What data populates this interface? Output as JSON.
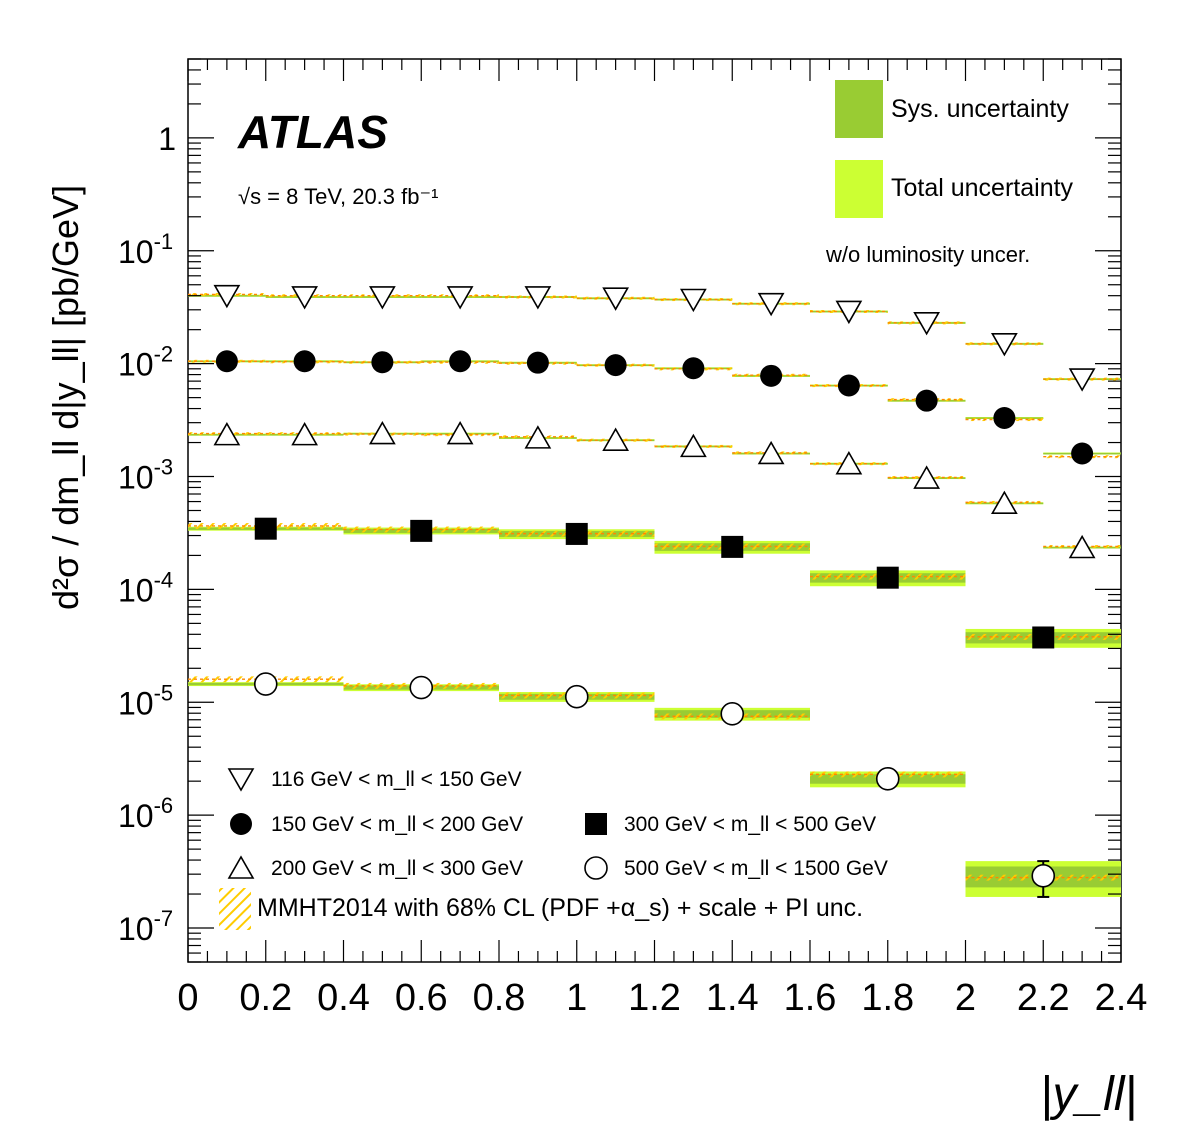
{
  "chart_data": {
    "type": "scatter",
    "experiment": "ATLAS",
    "energy_label": "√s = 8 TeV, 20.3 fb⁻¹",
    "ylabel": "d²σ / dm_ll d|y_ll| [pb/GeV]",
    "xlabel": "|y_ll|",
    "xlim": [
      0,
      2.4
    ],
    "ylim": [
      5e-08,
      5
    ],
    "y_scale": "log",
    "x_ticks": [
      "0",
      "0.2",
      "0.4",
      "0.6",
      "0.8",
      "1",
      "1.2",
      "1.4",
      "1.6",
      "1.8",
      "2",
      "2.2",
      "2.4"
    ],
    "y_ticks": [
      {
        "exp": "-7",
        "value": 1e-07
      },
      {
        "exp": "-6",
        "value": 1e-06
      },
      {
        "exp": "-5",
        "value": 1e-05
      },
      {
        "exp": "-4",
        "value": 0.0001
      },
      {
        "exp": "-3",
        "value": 0.001
      },
      {
        "exp": "-2",
        "value": 0.01
      },
      {
        "exp": "-1",
        "value": 0.1
      },
      {
        "exp": "",
        "value": 1
      }
    ],
    "band_legend": {
      "sys": "Sys. uncertainty",
      "total": "Total uncertainty",
      "note": "w/o luminosity uncer."
    },
    "theory_legend": "MMHT2014 with 68% CL (PDF +α_s) + scale + PI unc.",
    "colors": {
      "sys": "#99cc33",
      "total": "#ccff33",
      "theory": "#ffcc00",
      "theory_line": "#ff8800"
    },
    "series": [
      {
        "name": "116 GeV < m_ll < 150 GeV",
        "marker": "triangle-down-open",
        "bins": [
          [
            0,
            0.2
          ],
          [
            0.2,
            0.4
          ],
          [
            0.4,
            0.6
          ],
          [
            0.6,
            0.8
          ],
          [
            0.8,
            1.0
          ],
          [
            1.0,
            1.2
          ],
          [
            1.2,
            1.4
          ],
          [
            1.4,
            1.6
          ],
          [
            1.6,
            1.8
          ],
          [
            1.8,
            2.0
          ],
          [
            2.0,
            2.2
          ],
          [
            2.2,
            2.4
          ]
        ],
        "values": [
          0.04,
          0.039,
          0.039,
          0.039,
          0.039,
          0.038,
          0.037,
          0.034,
          0.029,
          0.023,
          0.015,
          0.0073
        ],
        "theory": [
          0.041,
          0.04,
          0.04,
          0.04,
          0.039,
          0.038,
          0.037,
          0.034,
          0.029,
          0.023,
          0.015,
          0.0073
        ]
      },
      {
        "name": "150 GeV < m_ll < 200 GeV",
        "marker": "circle-filled",
        "bins": [
          [
            0,
            0.2
          ],
          [
            0.2,
            0.4
          ],
          [
            0.4,
            0.6
          ],
          [
            0.6,
            0.8
          ],
          [
            0.8,
            1.0
          ],
          [
            1.0,
            1.2
          ],
          [
            1.2,
            1.4
          ],
          [
            1.4,
            1.6
          ],
          [
            1.6,
            1.8
          ],
          [
            1.8,
            2.0
          ],
          [
            2.0,
            2.2
          ],
          [
            2.2,
            2.4
          ]
        ],
        "values": [
          0.0105,
          0.0105,
          0.0103,
          0.0105,
          0.0102,
          0.0097,
          0.0091,
          0.0078,
          0.0064,
          0.0047,
          0.0033,
          0.0016
        ],
        "theory": [
          0.0105,
          0.0104,
          0.0103,
          0.0103,
          0.0101,
          0.0097,
          0.009,
          0.0079,
          0.0064,
          0.0048,
          0.0032,
          0.0015
        ]
      },
      {
        "name": "200 GeV < m_ll < 300 GeV",
        "marker": "triangle-up-open",
        "bins": [
          [
            0,
            0.2
          ],
          [
            0.2,
            0.4
          ],
          [
            0.4,
            0.6
          ],
          [
            0.6,
            0.8
          ],
          [
            0.8,
            1.0
          ],
          [
            1.0,
            1.2
          ],
          [
            1.2,
            1.4
          ],
          [
            1.4,
            1.6
          ],
          [
            1.6,
            1.8
          ],
          [
            1.8,
            2.0
          ],
          [
            2.0,
            2.2
          ],
          [
            2.2,
            2.4
          ]
        ],
        "values": [
          0.00235,
          0.00235,
          0.0024,
          0.0024,
          0.0022,
          0.0021,
          0.00185,
          0.0016,
          0.0013,
          0.00097,
          0.00058,
          0.000235
        ],
        "theory": [
          0.0024,
          0.0024,
          0.00238,
          0.00235,
          0.00225,
          0.0021,
          0.00185,
          0.00162,
          0.0013,
          0.00098,
          0.00059,
          0.00024
        ]
      },
      {
        "name": "300 GeV < m_ll < 500 GeV",
        "marker": "square-filled",
        "bins": [
          [
            0,
            0.4
          ],
          [
            0.4,
            0.8
          ],
          [
            0.8,
            1.2
          ],
          [
            1.2,
            1.6
          ],
          [
            1.6,
            2.0
          ],
          [
            2.0,
            2.4
          ]
        ],
        "values": [
          0.000345,
          0.00033,
          0.00031,
          0.000238,
          0.000127,
          3.75e-05
        ],
        "theory": [
          0.000365,
          0.00034,
          0.000312,
          0.00024,
          0.00013,
          3.8e-05
        ]
      },
      {
        "name": "500 GeV < m_ll < 1500 GeV",
        "marker": "circle-open",
        "bins": [
          [
            0,
            0.4
          ],
          [
            0.4,
            0.8
          ],
          [
            0.8,
            1.2
          ],
          [
            1.2,
            1.6
          ],
          [
            1.6,
            2.0
          ],
          [
            2.0,
            2.4
          ]
        ],
        "values": [
          1.45e-05,
          1.35e-05,
          1.12e-05,
          7.9e-06,
          2.1e-06,
          2.9e-07
        ],
        "theory": [
          1.6e-05,
          1.4e-05,
          1.15e-05,
          7.5e-06,
          2.3e-06,
          2.8e-07
        ]
      }
    ]
  }
}
